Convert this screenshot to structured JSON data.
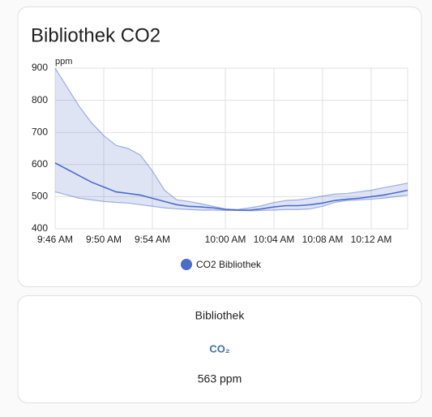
{
  "chart_data": {
    "type": "line",
    "title": "Bibliothek CO2",
    "y_label": "ppm",
    "x": [
      586,
      587,
      588,
      589,
      590,
      591,
      592,
      593,
      594,
      595,
      596,
      597,
      598,
      599,
      600,
      601,
      602,
      603,
      604,
      605,
      606,
      607,
      608,
      609,
      610,
      611,
      612,
      613,
      614,
      615
    ],
    "series": [
      {
        "name": "CO2 Bibliothek",
        "color": "#4b6cc9",
        "values": [
          605,
          585,
          565,
          545,
          530,
          515,
          510,
          505,
          495,
          485,
          475,
          470,
          468,
          465,
          460,
          458,
          458,
          462,
          468,
          472,
          472,
          475,
          480,
          488,
          492,
          495,
          500,
          505,
          512,
          520
        ],
        "max": [
          900,
          840,
          780,
          730,
          690,
          660,
          650,
          630,
          580,
          520,
          490,
          485,
          478,
          470,
          462,
          460,
          465,
          472,
          482,
          488,
          490,
          495,
          502,
          508,
          510,
          515,
          520,
          528,
          535,
          542
        ],
        "min": [
          515,
          505,
          495,
          490,
          485,
          482,
          480,
          475,
          470,
          465,
          462,
          460,
          458,
          458,
          457,
          457,
          456,
          457,
          458,
          460,
          460,
          462,
          470,
          482,
          488,
          490,
          492,
          495,
          500,
          505
        ]
      }
    ],
    "xlim": [
      586,
      615
    ],
    "xticks": [
      {
        "value": 586,
        "label": "9:46 AM"
      },
      {
        "value": 590,
        "label": "9:50 AM"
      },
      {
        "value": 594,
        "label": "9:54 AM"
      },
      {
        "value": 600,
        "label": "10:00 AM"
      },
      {
        "value": 604,
        "label": "10:04 AM"
      },
      {
        "value": 608,
        "label": "10:08 AM"
      },
      {
        "value": 612,
        "label": "10:12 AM"
      }
    ],
    "ylim": [
      400,
      900
    ],
    "yticks": [
      400,
      500,
      600,
      700,
      800,
      900
    ],
    "grid": true,
    "legend": "bottom"
  },
  "entity_card": {
    "name": "Bibliothek",
    "icon": "CO₂",
    "state": "563 ppm"
  }
}
